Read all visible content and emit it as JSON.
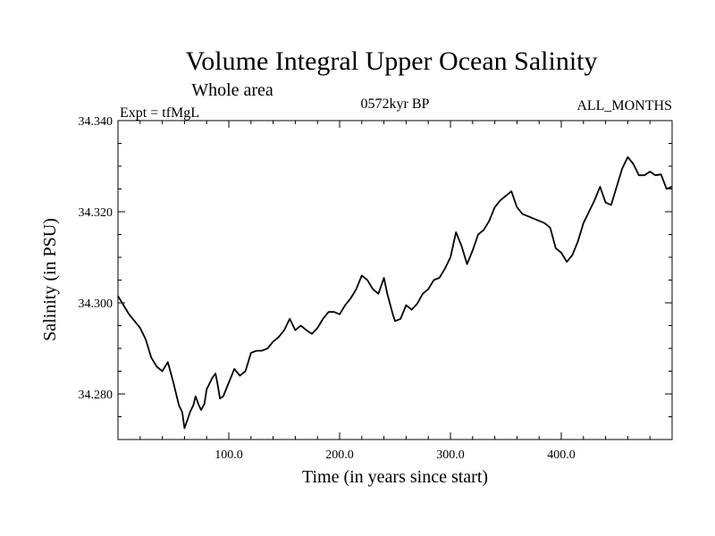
{
  "chart_data": {
    "type": "line",
    "title": "Volume Integral Upper Ocean Salinity",
    "subtitle": "Whole area",
    "annotations": {
      "left": "Expt = tfMgL",
      "center": "0572kyr BP",
      "right": "ALL_MONTHS"
    },
    "xlabel": "Time (in years since start)",
    "ylabel": "Salinity (in PSU)",
    "xlim": [
      0,
      500
    ],
    "ylim": [
      34.27,
      34.34
    ],
    "x_ticks": [
      {
        "value": 100,
        "label": "100.0"
      },
      {
        "value": 200,
        "label": "200.0"
      },
      {
        "value": 300,
        "label": "300.0"
      },
      {
        "value": 400,
        "label": "400.0"
      }
    ],
    "y_ticks": [
      {
        "value": 34.28,
        "label": "34.280"
      },
      {
        "value": 34.3,
        "label": "34.300"
      },
      {
        "value": 34.32,
        "label": "34.320"
      },
      {
        "value": 34.34,
        "label": "34.340"
      }
    ],
    "grid": false,
    "series": [
      {
        "color": "#000000",
        "x": [
          0,
          5,
          10,
          15,
          20,
          25,
          30,
          35,
          40,
          45,
          50,
          55,
          58,
          60,
          63,
          65,
          68,
          70,
          73,
          75,
          78,
          80,
          85,
          88,
          90,
          92,
          95,
          100,
          105,
          110,
          115,
          120,
          125,
          130,
          135,
          140,
          145,
          150,
          155,
          160,
          165,
          170,
          175,
          180,
          185,
          190,
          195,
          200,
          205,
          210,
          215,
          220,
          225,
          230,
          235,
          240,
          243,
          245,
          248,
          250,
          255,
          260,
          265,
          270,
          275,
          280,
          285,
          290,
          295,
          300,
          305,
          310,
          315,
          320,
          325,
          330,
          335,
          340,
          345,
          350,
          355,
          360,
          365,
          370,
          375,
          380,
          385,
          390,
          395,
          400,
          405,
          410,
          415,
          420,
          425,
          430,
          435,
          440,
          445,
          450,
          455,
          460,
          465,
          470,
          475,
          480,
          485,
          490,
          495,
          500
        ],
        "y": [
          34.3015,
          34.2995,
          34.2975,
          34.296,
          34.2945,
          34.292,
          34.288,
          34.286,
          34.285,
          34.287,
          34.2825,
          34.2775,
          34.276,
          34.2725,
          34.2745,
          34.276,
          34.2775,
          34.2795,
          34.2775,
          34.2765,
          34.2778,
          34.281,
          34.2835,
          34.2845,
          34.282,
          34.279,
          34.2795,
          34.2825,
          34.2855,
          34.284,
          34.285,
          34.289,
          34.2895,
          34.2895,
          34.29,
          34.2915,
          34.2925,
          34.294,
          34.2965,
          34.294,
          34.295,
          34.294,
          34.2932,
          34.2945,
          34.2965,
          34.298,
          34.298,
          34.2975,
          34.2995,
          34.301,
          34.303,
          34.306,
          34.305,
          34.303,
          34.302,
          34.3055,
          34.302,
          34.3002,
          34.2975,
          34.296,
          34.2965,
          34.2995,
          34.2985,
          34.2998,
          34.302,
          34.303,
          34.305,
          34.3055,
          34.3075,
          34.31,
          34.3155,
          34.3125,
          34.3085,
          34.3115,
          34.315,
          34.316,
          34.318,
          34.321,
          34.3225,
          34.3235,
          34.3245,
          34.321,
          34.3195,
          34.319,
          34.3185,
          34.318,
          34.3175,
          34.3165,
          34.312,
          34.311,
          34.309,
          34.3105,
          34.3135,
          34.3175,
          34.32,
          34.3225,
          34.3255,
          34.322,
          34.3215,
          34.3255,
          34.3295,
          34.332,
          34.3305,
          34.328,
          34.328,
          34.3288,
          34.328,
          34.3282,
          34.325,
          34.3255
        ]
      }
    ]
  }
}
